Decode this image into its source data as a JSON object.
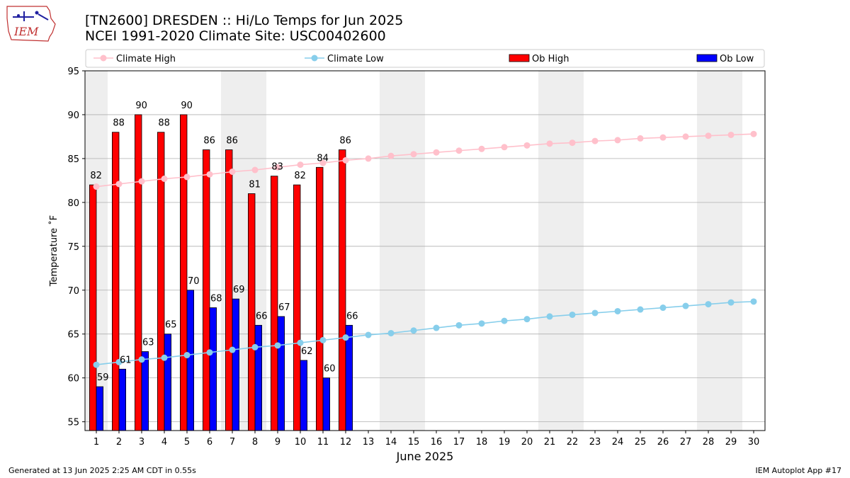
{
  "header": {
    "title_line1": "[TN2600] DRESDEN :: Hi/Lo Temps for Jun 2025",
    "title_line2": "NCEI 1991-2020 Climate Site: USC00402600"
  },
  "logo": {
    "text": "IEM",
    "icon": "iem-iowa-logo"
  },
  "footer": {
    "left": "Generated at 13 Jun 2025 2:25 AM CDT in 0.55s",
    "right": "IEM Autoplot App #17"
  },
  "colors": {
    "climate_high": "#ffc0cb",
    "climate_low": "#87ceeb",
    "ob_high": "#ff0000",
    "ob_low": "#0000ff",
    "weekend_shade": "#eeeeee",
    "grid": "#b0b0b0"
  },
  "chart_data": {
    "type": "bar",
    "xlabel": "June 2025",
    "ylabel": "Temperature ˚F",
    "ylim": [
      54,
      95
    ],
    "xlim": [
      0.5,
      30.5
    ],
    "yticks": [
      55,
      60,
      65,
      70,
      75,
      80,
      85,
      90,
      95
    ],
    "xticks": [
      1,
      2,
      3,
      4,
      5,
      6,
      7,
      8,
      9,
      10,
      11,
      12,
      13,
      14,
      15,
      16,
      17,
      18,
      19,
      20,
      21,
      22,
      23,
      24,
      25,
      26,
      27,
      28,
      29,
      30
    ],
    "grid": "horizontal",
    "legend": [
      "Climate High",
      "Climate Low",
      "Ob High",
      "Ob Low"
    ],
    "legend_placement": "top",
    "weekend_shading": [
      [
        1,
        1
      ],
      [
        7,
        8
      ],
      [
        14,
        15
      ],
      [
        21,
        22
      ],
      [
        28,
        29
      ]
    ],
    "series": [
      {
        "name": "Climate High",
        "kind": "line",
        "x": [
          1,
          2,
          3,
          4,
          5,
          6,
          7,
          8,
          9,
          10,
          11,
          12,
          13,
          14,
          15,
          16,
          17,
          18,
          19,
          20,
          21,
          22,
          23,
          24,
          25,
          26,
          27,
          28,
          29,
          30
        ],
        "values": [
          81.8,
          82.1,
          82.4,
          82.7,
          82.9,
          83.2,
          83.5,
          83.7,
          84.0,
          84.3,
          84.5,
          84.8,
          85.0,
          85.3,
          85.5,
          85.7,
          85.9,
          86.1,
          86.3,
          86.5,
          86.7,
          86.8,
          87.0,
          87.1,
          87.3,
          87.4,
          87.5,
          87.6,
          87.7,
          87.8
        ]
      },
      {
        "name": "Climate Low",
        "kind": "line",
        "x": [
          1,
          2,
          3,
          4,
          5,
          6,
          7,
          8,
          9,
          10,
          11,
          12,
          13,
          14,
          15,
          16,
          17,
          18,
          19,
          20,
          21,
          22,
          23,
          24,
          25,
          26,
          27,
          28,
          29,
          30
        ],
        "values": [
          61.5,
          61.8,
          62.1,
          62.3,
          62.6,
          62.9,
          63.2,
          63.5,
          63.7,
          64.0,
          64.3,
          64.6,
          64.9,
          65.1,
          65.4,
          65.7,
          66.0,
          66.2,
          66.5,
          66.7,
          67.0,
          67.2,
          67.4,
          67.6,
          67.8,
          68.0,
          68.2,
          68.4,
          68.6,
          68.7
        ]
      },
      {
        "name": "Ob High",
        "kind": "bar",
        "x": [
          1,
          2,
          3,
          4,
          5,
          6,
          7,
          8,
          9,
          10,
          11,
          12
        ],
        "values": [
          82,
          88,
          90,
          88,
          90,
          86,
          86,
          81,
          83,
          82,
          84,
          86
        ]
      },
      {
        "name": "Ob Low",
        "kind": "bar",
        "x": [
          1,
          2,
          3,
          4,
          5,
          6,
          7,
          8,
          9,
          10,
          11,
          12
        ],
        "values": [
          59,
          61,
          63,
          65,
          70,
          68,
          69,
          66,
          67,
          62,
          60,
          66
        ]
      }
    ]
  }
}
